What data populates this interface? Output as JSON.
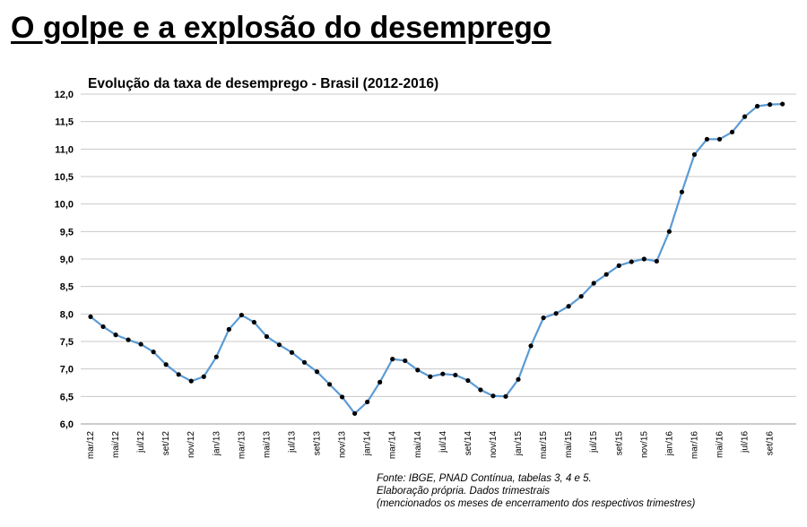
{
  "headline": "O golpe e a explosão do desemprego",
  "source": [
    "Fonte: IBGE, PNAD Contínua, tabelas 3, 4 e 5.",
    "Elaboração própria. Dados trimestrais",
    "(mencionados os meses de encerramento dos respectivos trimestres)"
  ],
  "colors": {
    "line": "#5b9bd5",
    "marker": "#000000",
    "grid": "#c8c8c8"
  },
  "chart_data": {
    "type": "line",
    "title": "Evolução da taxa de desemprego - Brasil (2012-2016)",
    "xlabel": "",
    "ylabel": "",
    "ylim": [
      6.0,
      12.0
    ],
    "yticks": [
      "6,0",
      "6,5",
      "7,0",
      "7,5",
      "8,0",
      "8,5",
      "9,0",
      "9,5",
      "10,0",
      "10,5",
      "11,0",
      "11,5",
      "12,0"
    ],
    "grid": true,
    "legend": "none",
    "x_tick_labels": [
      "mar/12",
      "mai/12",
      "jul/12",
      "set/12",
      "nov/12",
      "jan/13",
      "mar/13",
      "mai/13",
      "jul/13",
      "set/13",
      "nov/13",
      "jan/14",
      "mar/14",
      "mai/14",
      "jul/14",
      "set/14",
      "nov/14",
      "jan/15",
      "mar/15",
      "mai/15",
      "jul/15",
      "set/15",
      "nov/15",
      "jan/16",
      "mar/16",
      "mai/16",
      "jul/16",
      "set/16"
    ],
    "series": [
      {
        "values": [
          7.95,
          7.77,
          7.62,
          7.53,
          7.45,
          7.31,
          7.08,
          6.9,
          6.78,
          6.86,
          7.22,
          7.72,
          7.98,
          7.85,
          7.59,
          7.44,
          7.3,
          7.12,
          6.95,
          6.72,
          6.49,
          6.19,
          6.4,
          6.76,
          7.18,
          7.15,
          6.98,
          6.86,
          6.91,
          6.89,
          6.79,
          6.62,
          6.51,
          6.5,
          6.81,
          7.42,
          7.93,
          8.01,
          8.14,
          8.32,
          8.56,
          8.72,
          8.88,
          8.95,
          9.0,
          8.96,
          9.5,
          10.22,
          10.9,
          11.18,
          11.18,
          11.31,
          11.59,
          11.78,
          11.81,
          11.82
        ]
      }
    ]
  }
}
